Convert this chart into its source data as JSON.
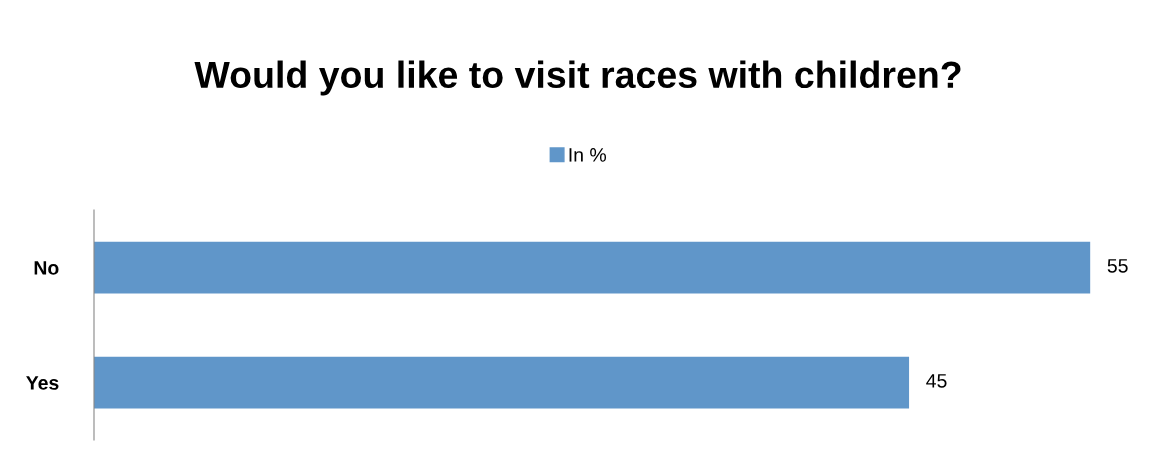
{
  "chart_data": {
    "type": "bar",
    "orientation": "horizontal",
    "title": "Would you like to visit races with children?",
    "categories": [
      "No",
      "Yes"
    ],
    "series": [
      {
        "name": "In %",
        "color": "#6096c9",
        "values": [
          55,
          45
        ]
      }
    ],
    "data_labels": true,
    "legend": "top",
    "grid": false
  }
}
